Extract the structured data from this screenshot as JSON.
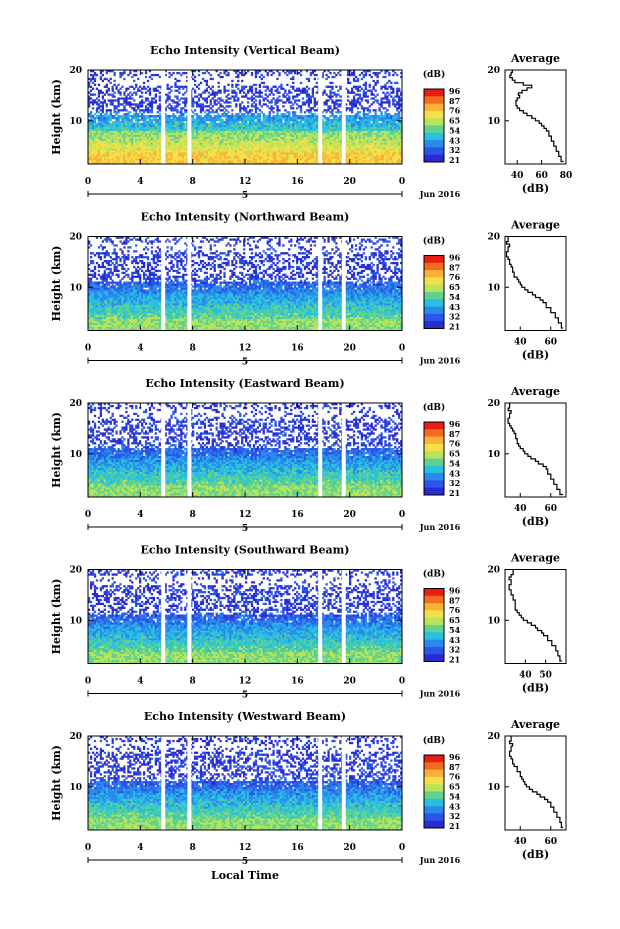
{
  "figure": {
    "date_label": "Jun 2016",
    "x_axis_label": "Local Time",
    "colorbar_unit": "(dB)",
    "colorbar_ticks": [
      "96",
      "87",
      "76",
      "65",
      "54",
      "43",
      "32",
      "21"
    ],
    "colorbar_colors": [
      "#e61e14",
      "#f56a1e",
      "#f9b236",
      "#f6e04a",
      "#b9e35a",
      "#5fd38d",
      "#28bfe0",
      "#2a8aec",
      "#2a55e8",
      "#2a2ad0"
    ]
  },
  "chart_data": [
    {
      "type": "heatmap",
      "title": "Echo Intensity (Vertical Beam)",
      "xlabel": "",
      "ylabel": "Height (km)",
      "x_ticks": [
        "0",
        "4",
        "8",
        "12",
        "16",
        "20",
        "0"
      ],
      "y_ticks": [
        "10",
        "20"
      ],
      "day_marker": "5",
      "xlim": [
        0,
        24
      ],
      "ylim": [
        1.5,
        20
      ],
      "color_range_db": [
        21,
        98
      ],
      "gaps_hours": [
        [
          5.6,
          5.9
        ],
        [
          7.6,
          7.9
        ],
        [
          17.6,
          17.9
        ],
        [
          19.4,
          19.7
        ]
      ]
    },
    {
      "type": "heatmap",
      "title": "Echo Intensity (Northward Beam)",
      "xlabel": "",
      "ylabel": "Height (km)",
      "x_ticks": [
        "0",
        "4",
        "8",
        "12",
        "16",
        "20",
        "0"
      ],
      "y_ticks": [
        "10",
        "20"
      ],
      "day_marker": "5",
      "xlim": [
        0,
        24
      ],
      "ylim": [
        1.5,
        20
      ],
      "color_range_db": [
        21,
        98
      ],
      "gaps_hours": [
        [
          5.6,
          5.9
        ],
        [
          7.6,
          7.9
        ],
        [
          17.6,
          17.9
        ],
        [
          19.4,
          19.7
        ]
      ]
    },
    {
      "type": "heatmap",
      "title": "Echo Intensity (Eastward Beam)",
      "xlabel": "",
      "ylabel": "Height (km)",
      "x_ticks": [
        "0",
        "4",
        "8",
        "12",
        "16",
        "20",
        "0"
      ],
      "y_ticks": [
        "10",
        "20"
      ],
      "day_marker": "5",
      "xlim": [
        0,
        24
      ],
      "ylim": [
        1.5,
        20
      ],
      "color_range_db": [
        21,
        98
      ],
      "gaps_hours": [
        [
          5.6,
          5.9
        ],
        [
          7.6,
          7.9
        ],
        [
          17.6,
          17.9
        ],
        [
          19.4,
          19.7
        ]
      ]
    },
    {
      "type": "heatmap",
      "title": "Echo Intensity (Southward Beam)",
      "xlabel": "",
      "ylabel": "Height (km)",
      "x_ticks": [
        "0",
        "4",
        "8",
        "12",
        "16",
        "20",
        "0"
      ],
      "y_ticks": [
        "10",
        "20"
      ],
      "day_marker": "5",
      "xlim": [
        0,
        24
      ],
      "ylim": [
        1.5,
        20
      ],
      "color_range_db": [
        21,
        98
      ],
      "gaps_hours": [
        [
          5.6,
          5.9
        ],
        [
          7.6,
          7.9
        ],
        [
          17.6,
          17.9
        ],
        [
          19.4,
          19.7
        ]
      ]
    },
    {
      "type": "heatmap",
      "title": "Echo Intensity (Westward Beam)",
      "xlabel": "",
      "ylabel": "Height (km)",
      "x_ticks": [
        "0",
        "4",
        "8",
        "12",
        "16",
        "20",
        "0"
      ],
      "y_ticks": [
        "10",
        "20"
      ],
      "day_marker": "5",
      "xlim": [
        0,
        24
      ],
      "ylim": [
        1.5,
        20
      ],
      "color_range_db": [
        21,
        98
      ],
      "gaps_hours": [
        [
          5.6,
          5.9
        ],
        [
          7.6,
          7.9
        ],
        [
          17.6,
          17.9
        ],
        [
          19.4,
          19.7
        ]
      ]
    },
    {
      "type": "line",
      "title": "Average",
      "xlabel": "(dB)",
      "ylabel": "",
      "x_ticks": [
        "40",
        "60",
        "80"
      ],
      "y_ticks": [
        "10",
        "20"
      ],
      "xlim": [
        30,
        80
      ],
      "ylim": [
        1.5,
        20
      ],
      "x": [
        78,
        76,
        74,
        72,
        70,
        68,
        66,
        64,
        62,
        60,
        58,
        55,
        52,
        48,
        45,
        42,
        40,
        39,
        39,
        40,
        42,
        41,
        44,
        48,
        52,
        45,
        38,
        36,
        34,
        35,
        36
      ],
      "y": [
        2,
        3,
        4,
        5,
        6,
        7,
        8,
        8.5,
        9,
        9.5,
        10,
        10.5,
        11,
        11.5,
        12,
        12.5,
        13,
        13.5,
        14,
        14.5,
        15,
        15.5,
        16,
        16.5,
        17,
        17.5,
        18,
        18.5,
        19,
        19.5,
        20
      ]
    },
    {
      "type": "line",
      "title": "Average",
      "xlabel": "(dB)",
      "ylabel": "",
      "x_ticks": [
        "40",
        "60"
      ],
      "y_ticks": [
        "10",
        "20"
      ],
      "xlim": [
        30,
        70
      ],
      "ylim": [
        1.5,
        20
      ],
      "x": [
        68,
        67,
        65,
        63,
        60,
        57,
        55,
        53,
        50,
        48,
        45,
        43,
        41,
        40,
        39,
        38,
        36,
        35,
        34,
        33,
        33,
        32,
        31,
        32,
        33,
        31,
        32
      ],
      "y": [
        2,
        3,
        4,
        5,
        6,
        7,
        7.5,
        8,
        8.5,
        9,
        9.5,
        10,
        10.5,
        11,
        11.5,
        12,
        13,
        14,
        14.5,
        15,
        15.5,
        16,
        17,
        18,
        18.5,
        19,
        20
      ]
    },
    {
      "type": "line",
      "title": "Average",
      "xlabel": "(dB)",
      "ylabel": "",
      "x_ticks": [
        "40",
        "60"
      ],
      "y_ticks": [
        "10",
        "20"
      ],
      "xlim": [
        30,
        70
      ],
      "ylim": [
        1.5,
        20
      ],
      "x": [
        68,
        66,
        64,
        62,
        60,
        58,
        57,
        55,
        52,
        50,
        47,
        45,
        43,
        42,
        40,
        39,
        38,
        37,
        36,
        35,
        34,
        33,
        32,
        33,
        34,
        32,
        33
      ],
      "y": [
        2,
        3,
        4,
        5,
        6,
        7,
        7.5,
        8,
        8.5,
        9,
        9.5,
        10,
        10.5,
        11,
        11.5,
        12,
        13,
        14,
        14.5,
        15,
        15.5,
        16,
        17,
        18,
        18.5,
        19,
        20
      ]
    },
    {
      "type": "line",
      "title": "Average",
      "xlabel": "(dB)",
      "ylabel": "",
      "x_ticks": [
        "40",
        "50"
      ],
      "y_ticks": [
        "10",
        "20"
      ],
      "xlim": [
        30,
        60
      ],
      "ylim": [
        1.5,
        20
      ],
      "x": [
        58,
        57,
        56,
        55,
        53,
        51,
        49,
        48,
        46,
        45,
        43,
        41,
        39,
        38,
        37,
        36,
        35,
        35,
        34,
        34,
        33,
        33,
        32,
        33,
        32,
        33,
        34
      ],
      "y": [
        2,
        3,
        4,
        5,
        6,
        7,
        7.5,
        8,
        8.5,
        9,
        9.5,
        10,
        10.5,
        11,
        11.5,
        12,
        13,
        14,
        14.5,
        15,
        15.5,
        16,
        17,
        18,
        18.5,
        19,
        20
      ]
    },
    {
      "type": "line",
      "title": "Average",
      "xlabel": "(dB)",
      "ylabel": "",
      "x_ticks": [
        "40",
        "60"
      ],
      "y_ticks": [
        "10",
        "20"
      ],
      "xlim": [
        30,
        70
      ],
      "ylim": [
        1.5,
        20
      ],
      "x": [
        68,
        67,
        66,
        64,
        62,
        60,
        58,
        56,
        53,
        51,
        48,
        46,
        44,
        43,
        42,
        41,
        40,
        38,
        36,
        35,
        35,
        34,
        33,
        34,
        35,
        33,
        34
      ],
      "y": [
        2,
        3,
        4,
        5,
        6,
        7,
        7.5,
        8,
        8.5,
        9,
        9.5,
        10,
        10.5,
        11,
        11.5,
        12,
        13,
        14,
        14.5,
        15,
        15.5,
        16,
        17,
        18,
        18.5,
        19,
        20
      ]
    }
  ]
}
